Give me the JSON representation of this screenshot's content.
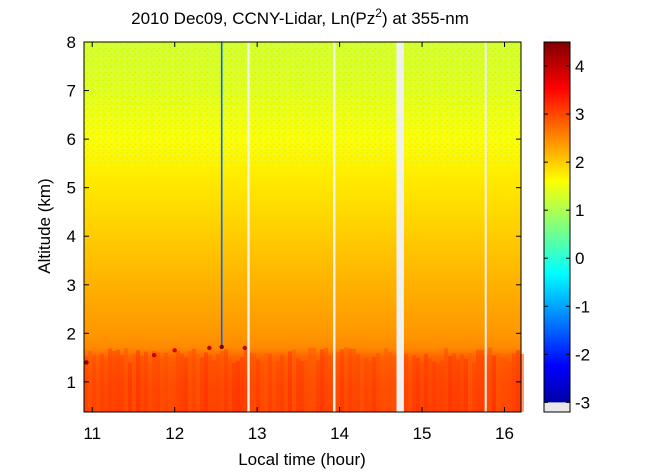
{
  "chart_data": {
    "type": "heatmap",
    "title": {
      "main": "2010 Dec09, CCNY-Lidar, Ln(Pz",
      "superscript": "2",
      "tail": ") at 355-nm"
    },
    "xlabel": "Local time (hour)",
    "ylabel": "Altitude (km)",
    "xlim": [
      10.9,
      16.2
    ],
    "ylim": [
      0.38,
      8.0
    ],
    "xticks": [
      "11",
      "12",
      "13",
      "14",
      "15",
      "16"
    ],
    "yticks": [
      "1",
      "2",
      "3",
      "4",
      "5",
      "6",
      "7",
      "8"
    ],
    "colorbar": {
      "range": [
        -3.2,
        4.5
      ],
      "ticks": [
        "4",
        "3",
        "2",
        "1",
        "0",
        "-1",
        "-2",
        "-3"
      ],
      "colormap": "jet"
    },
    "grid": false,
    "value_profile": [
      {
        "altitude_km": 0.4,
        "value": 3.1
      },
      {
        "altitude_km": 1.0,
        "value": 3.0
      },
      {
        "altitude_km": 1.5,
        "value": 2.8
      },
      {
        "altitude_km": 1.7,
        "value": 2.5
      },
      {
        "altitude_km": 2.0,
        "value": 2.4
      },
      {
        "altitude_km": 3.0,
        "value": 2.2
      },
      {
        "altitude_km": 4.0,
        "value": 2.0
      },
      {
        "altitude_km": 5.0,
        "value": 1.8
      },
      {
        "altitude_km": 6.0,
        "value": 1.6
      },
      {
        "altitude_km": 7.0,
        "value": 1.4
      },
      {
        "altitude_km": 8.0,
        "value": 1.3
      }
    ],
    "data_gaps_hour": [
      {
        "start": 12.88,
        "end": 12.91
      },
      {
        "start": 13.92,
        "end": 13.95
      },
      {
        "start": 14.69,
        "end": 14.78
      },
      {
        "start": 15.76,
        "end": 15.78
      }
    ],
    "vertical_spike": {
      "time_hour": 12.57,
      "altitude_from_km": 1.75,
      "altitude_to_km": 8.0,
      "value": -1.5
    },
    "hot_spots": [
      {
        "time_hour": 10.93,
        "altitude_km": 1.4,
        "value": 4.4
      },
      {
        "time_hour": 11.75,
        "altitude_km": 1.55,
        "value": 4.0
      },
      {
        "time_hour": 12.0,
        "altitude_km": 1.65,
        "value": 3.8
      },
      {
        "time_hour": 12.42,
        "altitude_km": 1.7,
        "value": 4.0
      },
      {
        "time_hour": 12.57,
        "altitude_km": 1.72,
        "value": 4.5
      },
      {
        "time_hour": 12.85,
        "altitude_km": 1.7,
        "value": 4.0
      }
    ]
  }
}
